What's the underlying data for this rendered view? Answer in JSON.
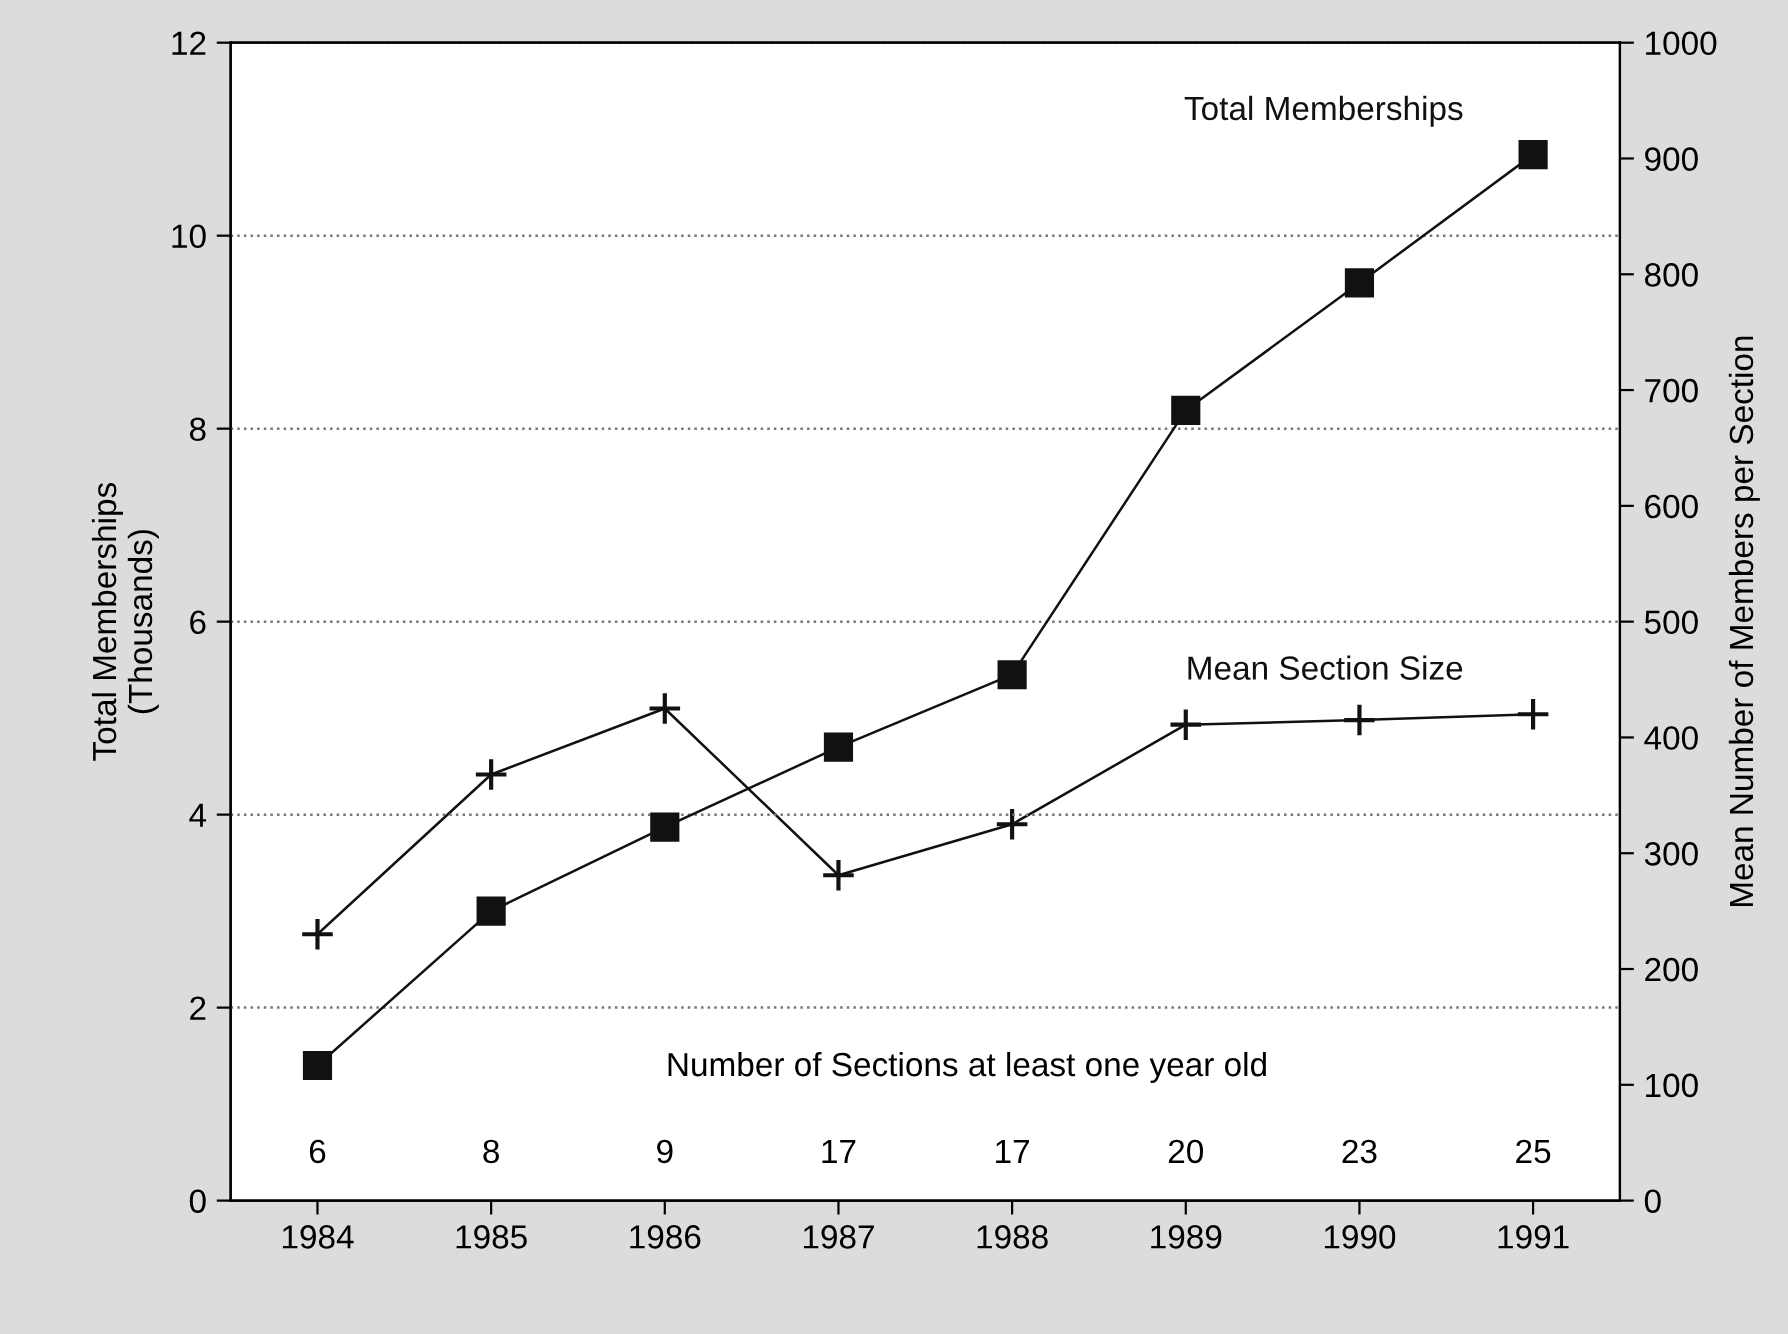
{
  "chart_data": {
    "type": "line",
    "ylabel": "Total Memberships\n(Thousands)",
    "y2label": "Mean Number of Members per Section",
    "x": [
      1984,
      1985,
      1986,
      1987,
      1988,
      1989,
      1990,
      1991
    ],
    "xlim": [
      1983.5,
      1991.5
    ],
    "xticks": [
      1984,
      1985,
      1986,
      1987,
      1988,
      1989,
      1990,
      1991
    ],
    "ylim": [
      0,
      12
    ],
    "yticks": [
      0,
      2,
      4,
      6,
      8,
      10,
      12
    ],
    "y2lim": [
      0,
      1000
    ],
    "y2ticks": [
      0,
      100,
      200,
      300,
      400,
      500,
      600,
      700,
      800,
      900,
      1000
    ],
    "grid": "y",
    "series": [
      {
        "name": "Total Memberships",
        "color": "#111111",
        "marker": "square",
        "values": [
          1.4,
          3.0,
          3.87,
          4.7,
          5.45,
          8.19,
          9.51,
          10.84
        ]
      },
      {
        "name": "Mean Section Size",
        "color": "#111111",
        "marker": "cross",
        "axis": "y2",
        "values": [
          230,
          368,
          425,
          281,
          325,
          411,
          415,
          420
        ]
      }
    ],
    "annotations": [
      "Number of Sections at least one year old",
      "6",
      "8",
      "9",
      "17",
      "17",
      "20",
      "23",
      "25"
    ]
  }
}
